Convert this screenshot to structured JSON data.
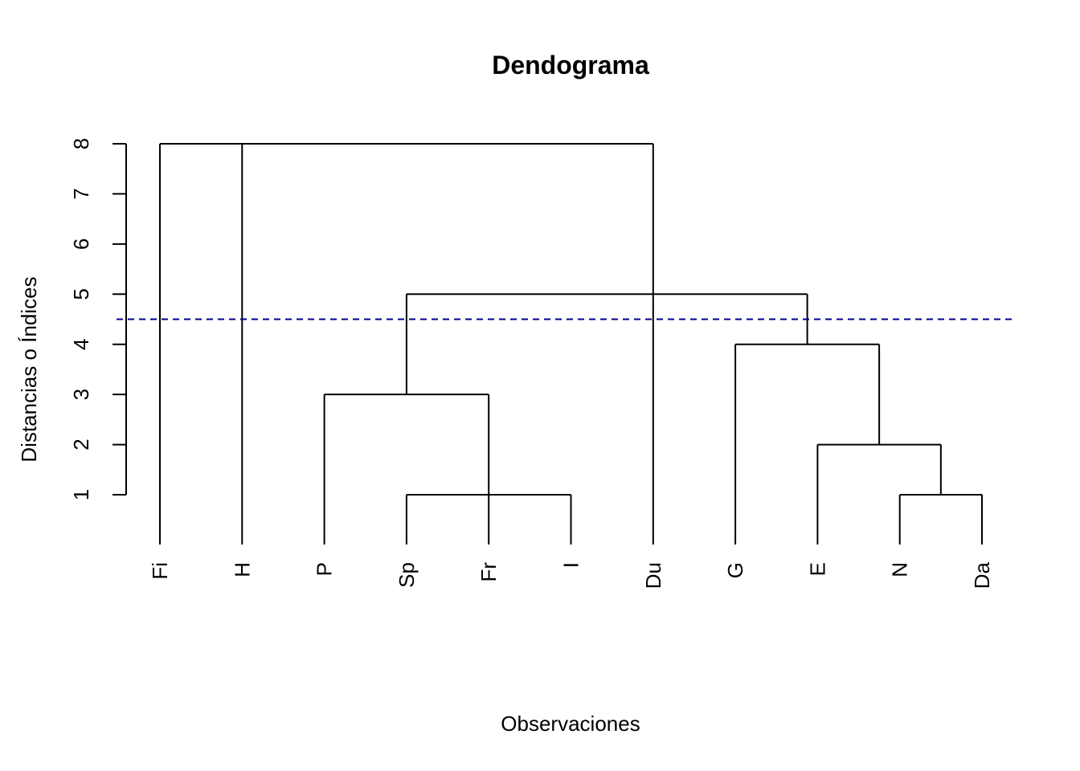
{
  "chart_data": {
    "type": "dendrogram",
    "title": "Dendograma",
    "xlabel": "Observaciones",
    "ylabel": "Distancias o Índices",
    "yticks": [
      1,
      2,
      3,
      4,
      5,
      6,
      7,
      8
    ],
    "ylim": [
      0,
      8
    ],
    "leaves": [
      "Fi",
      "H",
      "P",
      "Sp",
      "Fr",
      "I",
      "Du",
      "G",
      "E",
      "N",
      "Da"
    ],
    "merges": [
      {
        "members": [
          "Sp",
          "Fr",
          "I"
        ],
        "height": 1
      },
      {
        "members": [
          "N",
          "Da"
        ],
        "height": 1
      },
      {
        "members": [
          "E",
          "N+Da"
        ],
        "height": 2
      },
      {
        "members": [
          "P",
          "Sp+Fr+I"
        ],
        "height": 3
      },
      {
        "members": [
          "G",
          "E+N+Da"
        ],
        "height": 4
      },
      {
        "members": [
          "P+Sp+Fr+I",
          "Du",
          "G+E+N+Da"
        ],
        "height": 5
      },
      {
        "members": [
          "Fi",
          "H",
          "P+Sp+Fr+I+Du+G+E+N+Da"
        ],
        "height": 8
      }
    ],
    "cut_line": {
      "height": 4.5,
      "color": "#00008B",
      "style": "dashed"
    }
  }
}
